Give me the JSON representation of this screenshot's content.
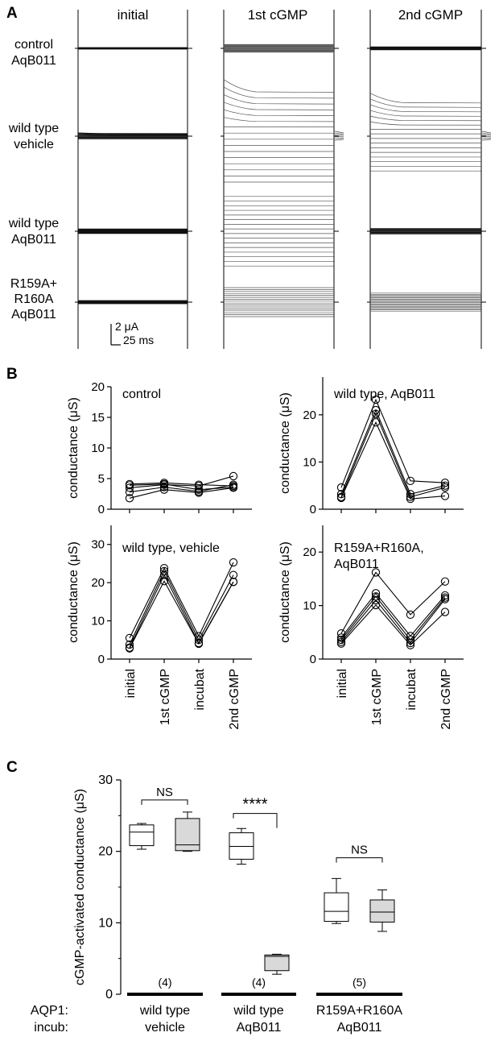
{
  "panel_labels": {
    "a": "A",
    "b": "B",
    "c": "C"
  },
  "panel_a": {
    "column_titles": [
      "initial",
      "1st cGMP",
      "2nd cGMP"
    ],
    "row_labels": [
      [
        "control",
        "AqB011"
      ],
      [
        "wild type",
        "vehicle"
      ],
      [
        "wild type",
        "AqB011"
      ],
      [
        "R159A+",
        "R160A",
        "AqB011"
      ]
    ],
    "scale_bar": {
      "current": "2 μA",
      "time": "25 ms"
    },
    "trace_spread": [
      [
        0.02,
        0.16,
        0.05
      ],
      [
        0.05,
        0.95,
        0.72
      ],
      [
        0.04,
        0.72,
        0.05
      ],
      [
        0.04,
        0.45,
        0.28
      ]
    ]
  },
  "chart_data": [
    {
      "type": "line",
      "panel": "B",
      "title": "control",
      "ylabel": "conductance (μS)",
      "categories": [
        "initial",
        "1st cGMP",
        "incubat",
        "2nd cGMP"
      ],
      "ylim": [
        0,
        20
      ],
      "yticks": [
        0,
        5,
        10,
        15,
        20
      ],
      "series": [
        {
          "values": [
            4.1,
            4.3,
            4.0,
            3.8
          ]
        },
        {
          "values": [
            3.5,
            4.0,
            3.8,
            5.4
          ]
        },
        {
          "values": [
            2.8,
            3.6,
            2.9,
            4.0
          ]
        },
        {
          "values": [
            1.8,
            3.2,
            2.7,
            3.5
          ]
        },
        {
          "values": [
            3.9,
            4.1,
            3.2,
            3.6
          ]
        }
      ]
    },
    {
      "type": "line",
      "panel": "B",
      "title": "wild type, AqB011",
      "ylabel": "conductance (μS)",
      "categories": [
        "initial",
        "1st cGMP",
        "incubat",
        "2nd cGMP"
      ],
      "ylim": [
        0,
        28
      ],
      "yticks": [
        0,
        10,
        20
      ],
      "series": [
        {
          "values": [
            4.6,
            23.2,
            6.0,
            5.6
          ]
        },
        {
          "values": [
            3.2,
            21.0,
            3.2,
            5.0
          ]
        },
        {
          "values": [
            2.6,
            20.2,
            2.6,
            4.6
          ]
        },
        {
          "values": [
            2.4,
            18.4,
            2.2,
            2.8
          ]
        }
      ]
    },
    {
      "type": "line",
      "panel": "B",
      "title": "wild type, vehicle",
      "ylabel": "conductance (μS)",
      "categories": [
        "initial",
        "1st cGMP",
        "incubat",
        "2nd cGMP"
      ],
      "ylim": [
        0,
        35
      ],
      "yticks": [
        0,
        10,
        20,
        30
      ],
      "series": [
        {
          "values": [
            5.5,
            23.8,
            6.0,
            25.3
          ]
        },
        {
          "values": [
            3.8,
            23.0,
            5.0,
            22.0
          ]
        },
        {
          "values": [
            3.0,
            22.0,
            4.2,
            20.2
          ]
        },
        {
          "values": [
            2.8,
            20.4,
            4.0,
            20.2
          ]
        }
      ]
    },
    {
      "type": "line",
      "panel": "B",
      "title": "R159A+R160A, AqB011",
      "ylabel": "conductance (μS)",
      "categories": [
        "initial",
        "1st cGMP",
        "incubat",
        "2nd cGMP"
      ],
      "ylim": [
        0,
        25
      ],
      "yticks": [
        0,
        10,
        20
      ],
      "series": [
        {
          "values": [
            4.8,
            16.2,
            8.3,
            14.5
          ]
        },
        {
          "values": [
            4.0,
            12.3,
            4.3,
            11.9
          ]
        },
        {
          "values": [
            3.6,
            11.7,
            3.6,
            11.5
          ]
        },
        {
          "values": [
            3.2,
            11.0,
            3.0,
            11.2
          ]
        },
        {
          "values": [
            2.9,
            10.1,
            2.6,
            8.8
          ]
        }
      ]
    },
    {
      "type": "box",
      "panel": "C",
      "ylabel": "cGMP-activated conductance (μS)",
      "ylim": [
        0,
        30
      ],
      "yticks": [
        0,
        10,
        20,
        30
      ],
      "row_labels": [
        "AQP1:",
        "incub:"
      ],
      "groups": [
        {
          "aqp1": "wild type",
          "incub": "vehicle",
          "n": "(4)",
          "boxes": [
            {
              "fill": "#ffffff",
              "min": 20.3,
              "q1": 20.8,
              "median": 22.7,
              "q3": 23.7,
              "max": 23.9
            },
            {
              "fill": "#d9d9d9",
              "min": 20.0,
              "q1": 20.1,
              "median": 20.9,
              "q3": 24.6,
              "max": 25.5
            }
          ],
          "significance": "NS"
        },
        {
          "aqp1": "wild type",
          "incub": "AqB011",
          "n": "(4)",
          "boxes": [
            {
              "fill": "#ffffff",
              "min": 18.2,
              "q1": 18.9,
              "median": 20.7,
              "q3": 22.6,
              "max": 23.2
            },
            {
              "fill": "#d9d9d9",
              "min": 2.8,
              "q1": 3.3,
              "median": 5.3,
              "q3": 5.5,
              "max": 5.6
            }
          ],
          "significance": "****"
        },
        {
          "aqp1": "R159A+R160A",
          "incub": "AqB011",
          "n": "(5)",
          "boxes": [
            {
              "fill": "#ffffff",
              "min": 9.9,
              "q1": 10.2,
              "median": 11.6,
              "q3": 14.2,
              "max": 16.2
            },
            {
              "fill": "#d9d9d9",
              "min": 8.8,
              "q1": 10.1,
              "median": 11.5,
              "q3": 13.2,
              "max": 14.6
            }
          ],
          "significance": "NS"
        }
      ]
    }
  ]
}
